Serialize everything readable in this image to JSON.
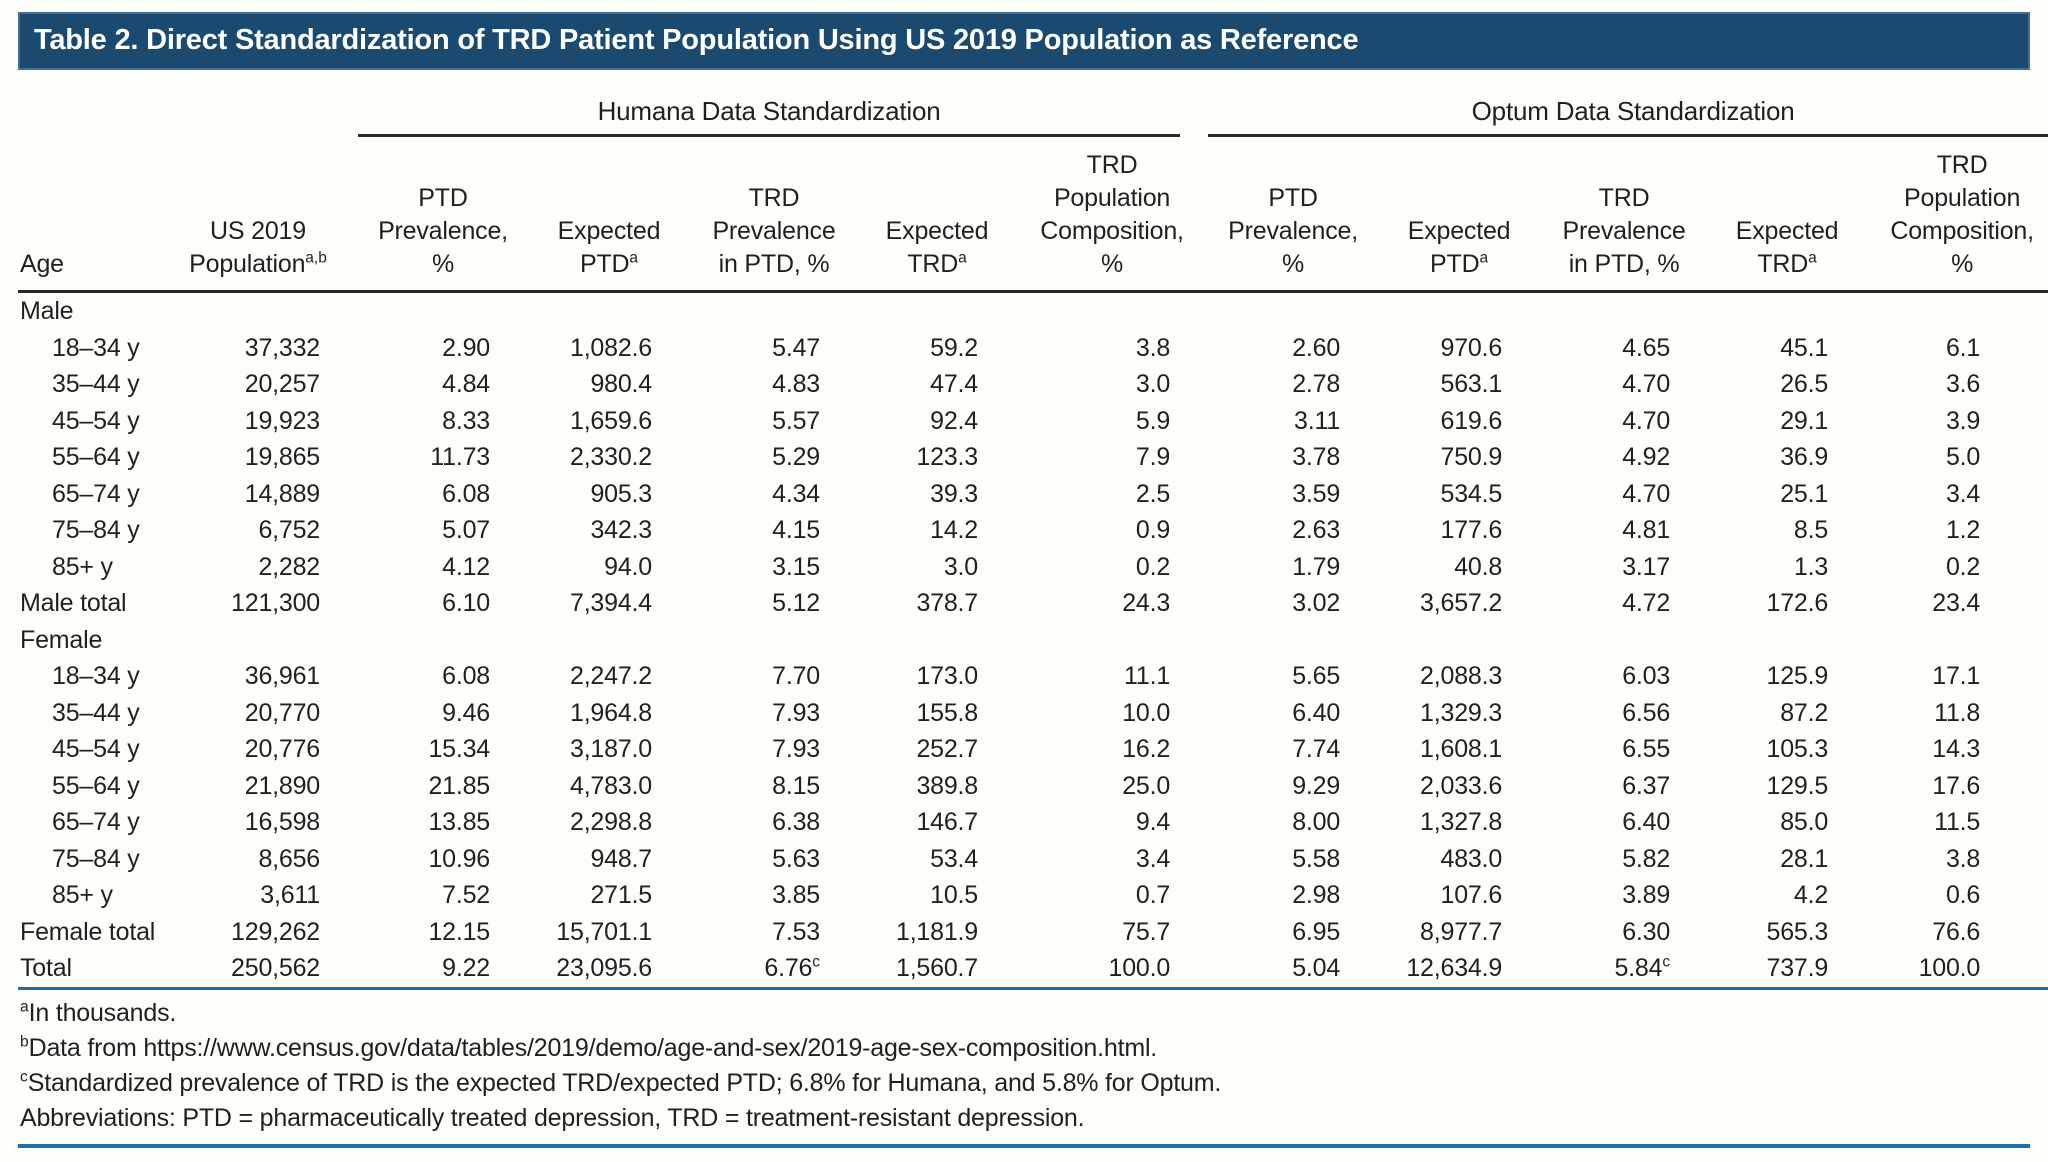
{
  "title": "Table 2. Direct Standardization of TRD Patient Population Using US 2019 Population as Reference",
  "groups": {
    "humana": "Humana Data Standardization",
    "optum": "Optum Data Standardization"
  },
  "columns": [
    {
      "text": "Age",
      "sup": ""
    },
    {
      "text": "US 2019\nPopulation",
      "sup": "a,b"
    },
    {
      "text": "PTD\nPrevalence,\n%",
      "sup": ""
    },
    {
      "text": "Expected\nPTD",
      "sup": "a"
    },
    {
      "text": "TRD\nPrevalence\nin PTD, %",
      "sup": ""
    },
    {
      "text": "Expected\nTRD",
      "sup": "a"
    },
    {
      "text": "TRD\nPopulation\nComposition,\n%",
      "sup": ""
    },
    {
      "text": "PTD\nPrevalence,\n%",
      "sup": ""
    },
    {
      "text": "Expected\nPTD",
      "sup": "a"
    },
    {
      "text": "TRD\nPrevalence\nin PTD, %",
      "sup": ""
    },
    {
      "text": "Expected\nTRD",
      "sup": "a"
    },
    {
      "text": "TRD\nPopulation\nComposition,\n%",
      "sup": ""
    }
  ],
  "rows": [
    {
      "type": "section",
      "label": "Male"
    },
    {
      "type": "data",
      "age": "18–34 y",
      "values": [
        "37,332",
        "2.90",
        "1,082.6",
        "5.47",
        "59.2",
        "3.8",
        "2.60",
        "970.6",
        "4.65",
        "45.1",
        "6.1"
      ]
    },
    {
      "type": "data",
      "age": "35–44 y",
      "values": [
        "20,257",
        "4.84",
        "980.4",
        "4.83",
        "47.4",
        "3.0",
        "2.78",
        "563.1",
        "4.70",
        "26.5",
        "3.6"
      ]
    },
    {
      "type": "data",
      "age": "45–54 y",
      "values": [
        "19,923",
        "8.33",
        "1,659.6",
        "5.57",
        "92.4",
        "5.9",
        "3.11",
        "619.6",
        "4.70",
        "29.1",
        "3.9"
      ]
    },
    {
      "type": "data",
      "age": "55–64 y",
      "values": [
        "19,865",
        "11.73",
        "2,330.2",
        "5.29",
        "123.3",
        "7.9",
        "3.78",
        "750.9",
        "4.92",
        "36.9",
        "5.0"
      ]
    },
    {
      "type": "data",
      "age": "65–74 y",
      "values": [
        "14,889",
        "6.08",
        "905.3",
        "4.34",
        "39.3",
        "2.5",
        "3.59",
        "534.5",
        "4.70",
        "25.1",
        "3.4"
      ]
    },
    {
      "type": "data",
      "age": "75–84 y",
      "values": [
        "6,752",
        "5.07",
        "342.3",
        "4.15",
        "14.2",
        "0.9",
        "2.63",
        "177.6",
        "4.81",
        "8.5",
        "1.2"
      ]
    },
    {
      "type": "data",
      "age": "85+ y",
      "values": [
        "2,282",
        "4.12",
        "94.0",
        "3.15",
        "3.0",
        "0.2",
        "1.79",
        "40.8",
        "3.17",
        "1.3",
        "0.2"
      ]
    },
    {
      "type": "total",
      "age": "Male total",
      "values": [
        "121,300",
        "6.10",
        "7,394.4",
        "5.12",
        "378.7",
        "24.3",
        "3.02",
        "3,657.2",
        "4.72",
        "172.6",
        "23.4"
      ]
    },
    {
      "type": "section",
      "label": "Female"
    },
    {
      "type": "data",
      "age": "18–34 y",
      "values": [
        "36,961",
        "6.08",
        "2,247.2",
        "7.70",
        "173.0",
        "11.1",
        "5.65",
        "2,088.3",
        "6.03",
        "125.9",
        "17.1"
      ]
    },
    {
      "type": "data",
      "age": "35–44 y",
      "values": [
        "20,770",
        "9.46",
        "1,964.8",
        "7.93",
        "155.8",
        "10.0",
        "6.40",
        "1,329.3",
        "6.56",
        "87.2",
        "11.8"
      ]
    },
    {
      "type": "data",
      "age": "45–54 y",
      "values": [
        "20,776",
        "15.34",
        "3,187.0",
        "7.93",
        "252.7",
        "16.2",
        "7.74",
        "1,608.1",
        "6.55",
        "105.3",
        "14.3"
      ]
    },
    {
      "type": "data",
      "age": "55–64 y",
      "values": [
        "21,890",
        "21.85",
        "4,783.0",
        "8.15",
        "389.8",
        "25.0",
        "9.29",
        "2,033.6",
        "6.37",
        "129.5",
        "17.6"
      ]
    },
    {
      "type": "data",
      "age": "65–74 y",
      "values": [
        "16,598",
        "13.85",
        "2,298.8",
        "6.38",
        "146.7",
        "9.4",
        "8.00",
        "1,327.8",
        "6.40",
        "85.0",
        "11.5"
      ]
    },
    {
      "type": "data",
      "age": "75–84 y",
      "values": [
        "8,656",
        "10.96",
        "948.7",
        "5.63",
        "53.4",
        "3.4",
        "5.58",
        "483.0",
        "5.82",
        "28.1",
        "3.8"
      ]
    },
    {
      "type": "data",
      "age": "85+ y",
      "values": [
        "3,611",
        "7.52",
        "271.5",
        "3.85",
        "10.5",
        "0.7",
        "2.98",
        "107.6",
        "3.89",
        "4.2",
        "0.6"
      ]
    },
    {
      "type": "total",
      "age": "Female total",
      "values": [
        "129,262",
        "12.15",
        "15,701.1",
        "7.53",
        "1,181.9",
        "75.7",
        "6.95",
        "8,977.7",
        "6.30",
        "565.3",
        "76.6"
      ]
    },
    {
      "type": "total",
      "age": "Total",
      "values": [
        "250,562",
        "9.22",
        "23,095.6",
        {
          "v": "6.76",
          "sup": "c"
        },
        "1,560.7",
        "100.0",
        "5.04",
        "12,634.9",
        {
          "v": "5.84",
          "sup": "c"
        },
        "737.9",
        "100.0"
      ]
    }
  ],
  "footnotes": [
    {
      "sup": "a",
      "text": "In thousands."
    },
    {
      "sup": "b",
      "text": "Data from https://www.census.gov/data/tables/2019/demo/age-and-sex/2019-age-sex-composition.html."
    },
    {
      "sup": "c",
      "text": "Standardized prevalence of TRD is the expected TRD/expected PTD; 6.8% for Humana, and 5.8% for Optum."
    },
    {
      "sup": "",
      "text": "Abbreviations: PTD = pharmaceutically treated depression, TRD = treatment-resistant depression."
    }
  ]
}
